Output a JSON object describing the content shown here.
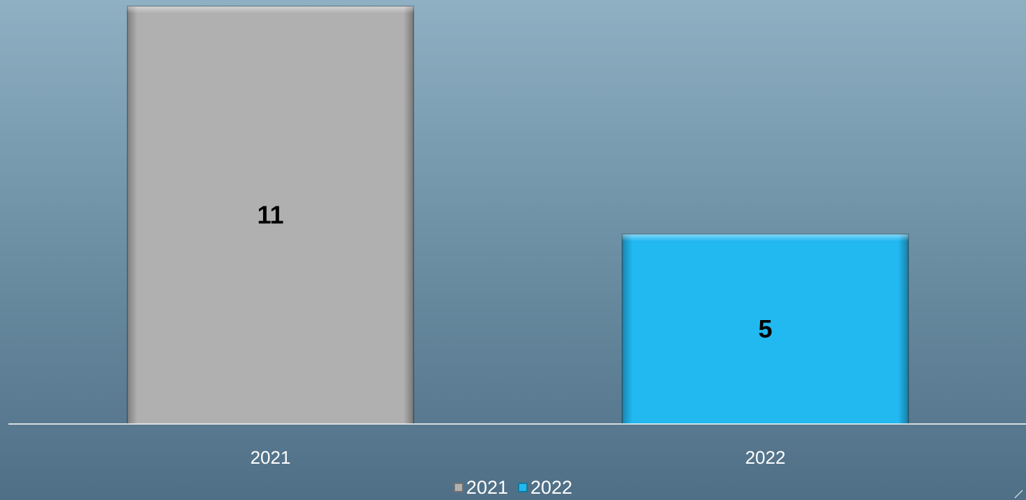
{
  "chart_data": {
    "type": "bar",
    "categories": [
      "2021",
      "2022"
    ],
    "values": [
      11,
      5
    ],
    "data_labels": [
      "11",
      "5"
    ],
    "colors": [
      "#b0b0b0",
      "#22b8f0"
    ],
    "ylim": [
      0,
      11
    ],
    "grid": false,
    "title": "",
    "xlabel": "",
    "ylabel": "",
    "legend": {
      "placement": "bottom",
      "entries": [
        {
          "label": "2021",
          "color": "#b0b0b0"
        },
        {
          "label": "2022",
          "color": "#22b8f0"
        }
      ]
    }
  }
}
